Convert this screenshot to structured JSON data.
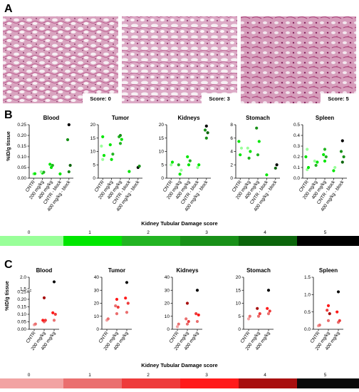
{
  "panel_a": {
    "letter": "A",
    "images": [
      {
        "score_label": "Score: 0"
      },
      {
        "score_label": "Score: 3"
      },
      {
        "score_label": "Score: 5"
      }
    ]
  },
  "panel_b": {
    "letter": "B",
    "ylabel": "%ID/g tissue",
    "scale": {
      "title": "Kidney Tubular Damage score",
      "labels": [
        "0",
        "1",
        "2",
        "3",
        "4",
        "5"
      ],
      "colors": [
        "#99ff99",
        "#00e600",
        "#22b422",
        "#189018",
        "#0b650b",
        "#000000"
      ]
    }
  },
  "panel_c": {
    "letter": "C",
    "ylabel": "%ID/g tissue",
    "scale": {
      "title": "Kidney Tubular Damage score",
      "labels": [
        "0",
        "1",
        "2",
        "3",
        "4",
        "5"
      ],
      "colors": [
        "#f2a3a3",
        "#ea6f6f",
        "#ee3b3b",
        "#ff1a1a",
        "#a80f0f",
        "#0a0a0a"
      ]
    }
  },
  "chart_data": [
    {
      "type": "scatter",
      "panel": "B",
      "title": "Blood",
      "categories": [
        "CNTR",
        "200 mg/kg",
        "400 mg/kg",
        "CNTR - block",
        "400 mg/kg - block"
      ],
      "yticks": [
        "0.00",
        "0.05",
        "0.10",
        "0.15",
        "0.20",
        "0.25"
      ],
      "ylim": [
        0,
        0.25
      ],
      "points": [
        {
          "x": "CNTR",
          "y": 0.02,
          "score": 0
        },
        {
          "x": "CNTR",
          "y": 0.021,
          "score": 1
        },
        {
          "x": "200 mg/kg",
          "y": 0.024,
          "score": 1
        },
        {
          "x": "200 mg/kg",
          "y": 0.028,
          "score": 2
        },
        {
          "x": "200 mg/kg",
          "y": 0.03,
          "score": 0
        },
        {
          "x": "400 mg/kg",
          "y": 0.05,
          "score": 1
        },
        {
          "x": "400 mg/kg",
          "y": 0.06,
          "score": 2
        },
        {
          "x": "400 mg/kg",
          "y": 0.065,
          "score": 1
        },
        {
          "x": "CNTR - block",
          "y": 0.02,
          "score": 1
        },
        {
          "x": "400 mg/kg - block",
          "y": 0.03,
          "score": 3
        },
        {
          "x": "400 mg/kg - block",
          "y": 0.06,
          "score": 4
        },
        {
          "x": "400 mg/kg - block",
          "y": 0.18,
          "score": 3
        },
        {
          "x": "400 mg/kg - block",
          "y": 0.25,
          "score": 5
        }
      ]
    },
    {
      "type": "scatter",
      "panel": "B",
      "title": "Tumor",
      "categories": [
        "CNTR",
        "200 mg/kg",
        "400 mg/kg",
        "CNTR - block",
        "400 mg/kg - block"
      ],
      "yticks": [
        "0",
        "5",
        "10",
        "15",
        "20"
      ],
      "ylim": [
        0,
        20
      ],
      "points": [
        {
          "x": "CNTR",
          "y": 7,
          "score": 0
        },
        {
          "x": "CNTR",
          "y": 8.5,
          "score": 1
        },
        {
          "x": "CNTR",
          "y": 12,
          "score": 0
        },
        {
          "x": "CNTR",
          "y": 15.5,
          "score": 1
        },
        {
          "x": "200 mg/kg",
          "y": 7,
          "score": 1
        },
        {
          "x": "200 mg/kg",
          "y": 9,
          "score": 2
        },
        {
          "x": "200 mg/kg",
          "y": 12.5,
          "score": 1
        },
        {
          "x": "400 mg/kg",
          "y": 13,
          "score": 2
        },
        {
          "x": "400 mg/kg",
          "y": 14.5,
          "score": 1
        },
        {
          "x": "400 mg/kg",
          "y": 15.5,
          "score": 2
        },
        {
          "x": "400 mg/kg",
          "y": 16,
          "score": 3
        },
        {
          "x": "CNTR - block",
          "y": 2.5,
          "score": 1
        },
        {
          "x": "400 mg/kg - block",
          "y": 4,
          "score": 5
        },
        {
          "x": "400 mg/kg - block",
          "y": 4.5,
          "score": 3
        }
      ]
    },
    {
      "type": "scatter",
      "panel": "B",
      "title": "Kidneys",
      "categories": [
        "CNTR",
        "200 mg/kg",
        "400 mg/kg",
        "CNTR - block",
        "400 mg/kg - block"
      ],
      "yticks": [
        "0",
        "5",
        "10",
        "15",
        "20"
      ],
      "ylim": [
        0,
        20
      ],
      "points": [
        {
          "x": "CNTR",
          "y": 5,
          "score": 0
        },
        {
          "x": "CNTR",
          "y": 6,
          "score": 1
        },
        {
          "x": "200 mg/kg",
          "y": 1.5,
          "score": 1
        },
        {
          "x": "200 mg/kg",
          "y": 3,
          "score": 0
        },
        {
          "x": "200 mg/kg",
          "y": 5,
          "score": 2
        },
        {
          "x": "400 mg/kg",
          "y": 5,
          "score": 1
        },
        {
          "x": "400 mg/kg",
          "y": 6.5,
          "score": 2
        },
        {
          "x": "400 mg/kg",
          "y": 8,
          "score": 1
        },
        {
          "x": "CNTR - block",
          "y": 4,
          "score": 0
        },
        {
          "x": "CNTR - block",
          "y": 5,
          "score": 1
        },
        {
          "x": "400 mg/kg - block",
          "y": 15,
          "score": 3
        },
        {
          "x": "400 mg/kg - block",
          "y": 17,
          "score": 4
        },
        {
          "x": "400 mg/kg - block",
          "y": 18,
          "score": 3
        },
        {
          "x": "400 mg/kg - block",
          "y": 19.5,
          "score": 5
        }
      ]
    },
    {
      "type": "scatter",
      "panel": "B",
      "title": "Stomach",
      "categories": [
        "CNTR",
        "200 mg/kg",
        "400 mg/kg",
        "CNTR - block",
        "400 mg/kg - block"
      ],
      "yticks": [
        "0",
        "2",
        "4",
        "6",
        "8"
      ],
      "ylim": [
        0,
        8
      ],
      "points": [
        {
          "x": "CNTR",
          "y": 3.5,
          "score": 1
        },
        {
          "x": "CNTR",
          "y": 4.5,
          "score": 0
        },
        {
          "x": "CNTR",
          "y": 5.5,
          "score": 1
        },
        {
          "x": "200 mg/kg",
          "y": 3,
          "score": 2
        },
        {
          "x": "200 mg/kg",
          "y": 4,
          "score": 1
        },
        {
          "x": "200 mg/kg",
          "y": 4.5,
          "score": 0
        },
        {
          "x": "400 mg/kg",
          "y": 3.5,
          "score": 2
        },
        {
          "x": "400 mg/kg",
          "y": 5.5,
          "score": 1
        },
        {
          "x": "400 mg/kg",
          "y": 7.5,
          "score": 3
        },
        {
          "x": "CNTR - block",
          "y": 0.5,
          "score": 1
        },
        {
          "x": "400 mg/kg - block",
          "y": 1.5,
          "score": 4
        },
        {
          "x": "400 mg/kg - block",
          "y": 2,
          "score": 5
        }
      ]
    },
    {
      "type": "scatter",
      "panel": "B",
      "title": "Spleen",
      "categories": [
        "CNTR",
        "200 mg/kg",
        "400 mg/kg",
        "CNTR - block",
        "400 mg/kg - block"
      ],
      "yticks": [
        "0.0",
        "0.1",
        "0.2",
        "0.3",
        "0.4",
        "0.5"
      ],
      "ylim": [
        0,
        0.5
      ],
      "points": [
        {
          "x": "CNTR",
          "y": 0.08,
          "score": 0
        },
        {
          "x": "CNTR",
          "y": 0.1,
          "score": 1
        },
        {
          "x": "CNTR",
          "y": 0.2,
          "score": 1
        },
        {
          "x": "CNTR",
          "y": 0.27,
          "score": 0
        },
        {
          "x": "200 mg/kg",
          "y": 0.12,
          "score": 2
        },
        {
          "x": "200 mg/kg",
          "y": 0.15,
          "score": 1
        },
        {
          "x": "200 mg/kg",
          "y": 0.16,
          "score": 0
        },
        {
          "x": "400 mg/kg",
          "y": 0.16,
          "score": 1
        },
        {
          "x": "400 mg/kg",
          "y": 0.2,
          "score": 2
        },
        {
          "x": "400 mg/kg",
          "y": 0.22,
          "score": 1
        },
        {
          "x": "400 mg/kg",
          "y": 0.27,
          "score": 2
        },
        {
          "x": "CNTR - block",
          "y": 0.07,
          "score": 1
        },
        {
          "x": "CNTR - block",
          "y": 0.1,
          "score": 0
        },
        {
          "x": "400 mg/kg - block",
          "y": 0.15,
          "score": 4
        },
        {
          "x": "400 mg/kg - block",
          "y": 0.2,
          "score": 3
        },
        {
          "x": "400 mg/kg - block",
          "y": 0.25,
          "score": 3
        },
        {
          "x": "400 mg/kg - block",
          "y": 0.35,
          "score": 5
        }
      ]
    },
    {
      "type": "scatter",
      "panel": "C",
      "title": "Blood",
      "categories": [
        "CNTR",
        "200 mg/kg",
        "400 mg/kg"
      ],
      "yticks": [
        "0.00",
        "0.05",
        "0.10",
        "0.15",
        "0.20",
        "0.25",
        "1.5",
        "2.0"
      ],
      "ylim": [
        0,
        2.0
      ],
      "axis_break": [
        0.25,
        1.5
      ],
      "points": [
        {
          "x": "CNTR",
          "y": 0.03,
          "score": 0
        },
        {
          "x": "CNTR",
          "y": 0.035,
          "score": 1
        },
        {
          "x": "200 mg/kg",
          "y": 0.05,
          "score": 1
        },
        {
          "x": "200 mg/kg",
          "y": 0.06,
          "score": 2
        },
        {
          "x": "200 mg/kg",
          "y": 0.06,
          "score": 3
        },
        {
          "x": "200 mg/kg",
          "y": 0.21,
          "score": 4
        },
        {
          "x": "400 mg/kg",
          "y": 0.06,
          "score": 1
        },
        {
          "x": "400 mg/kg",
          "y": 0.1,
          "score": 2
        },
        {
          "x": "400 mg/kg",
          "y": 0.11,
          "score": 3
        },
        {
          "x": "400 mg/kg",
          "y": 1.8,
          "score": 5
        }
      ]
    },
    {
      "type": "scatter",
      "panel": "C",
      "title": "Tumor",
      "categories": [
        "CNTR",
        "200 mg/kg",
        "400 mg/kg"
      ],
      "yticks": [
        "0",
        "10",
        "20",
        "30",
        "40"
      ],
      "ylim": [
        0,
        40
      ],
      "points": [
        {
          "x": "CNTR",
          "y": 7,
          "score": 0
        },
        {
          "x": "CNTR",
          "y": 8,
          "score": 1
        },
        {
          "x": "200 mg/kg",
          "y": 12,
          "score": 1
        },
        {
          "x": "200 mg/kg",
          "y": 17,
          "score": 2
        },
        {
          "x": "200 mg/kg",
          "y": 18,
          "score": 1
        },
        {
          "x": "200 mg/kg",
          "y": 23,
          "score": 3
        },
        {
          "x": "400 mg/kg",
          "y": 13,
          "score": 1
        },
        {
          "x": "400 mg/kg",
          "y": 20,
          "score": 2
        },
        {
          "x": "400 mg/kg",
          "y": 24,
          "score": 3
        },
        {
          "x": "400 mg/kg",
          "y": 36,
          "score": 5
        }
      ]
    },
    {
      "type": "scatter",
      "panel": "C",
      "title": "Kidneys",
      "categories": [
        "CNTR",
        "200 mg/kg",
        "400 mg/kg"
      ],
      "yticks": [
        "0",
        "10",
        "20",
        "30",
        "40"
      ],
      "ylim": [
        0,
        40
      ],
      "points": [
        {
          "x": "CNTR",
          "y": 2,
          "score": 0
        },
        {
          "x": "CNTR",
          "y": 4,
          "score": 1
        },
        {
          "x": "200 mg/kg",
          "y": 4,
          "score": 1
        },
        {
          "x": "200 mg/kg",
          "y": 6,
          "score": 2
        },
        {
          "x": "200 mg/kg",
          "y": 8,
          "score": 1
        },
        {
          "x": "200 mg/kg",
          "y": 20,
          "score": 4
        },
        {
          "x": "400 mg/kg",
          "y": 6,
          "score": 1
        },
        {
          "x": "400 mg/kg",
          "y": 11,
          "score": 3
        },
        {
          "x": "400 mg/kg",
          "y": 12,
          "score": 2
        },
        {
          "x": "400 mg/kg",
          "y": 30,
          "score": 5
        }
      ]
    },
    {
      "type": "scatter",
      "panel": "C",
      "title": "Stomach",
      "categories": [
        "CNTR",
        "200 mg/kg",
        "400 mg/kg"
      ],
      "yticks": [
        "0",
        "5",
        "10",
        "15",
        "20"
      ],
      "ylim": [
        0,
        20
      ],
      "points": [
        {
          "x": "CNTR",
          "y": 4,
          "score": 0
        },
        {
          "x": "CNTR",
          "y": 5,
          "score": 1
        },
        {
          "x": "200 mg/kg",
          "y": 5,
          "score": 1
        },
        {
          "x": "200 mg/kg",
          "y": 6,
          "score": 2
        },
        {
          "x": "200 mg/kg",
          "y": 8,
          "score": 4
        },
        {
          "x": "400 mg/kg",
          "y": 6,
          "score": 1
        },
        {
          "x": "400 mg/kg",
          "y": 7,
          "score": 2
        },
        {
          "x": "400 mg/kg",
          "y": 8,
          "score": 3
        },
        {
          "x": "400 mg/kg",
          "y": 15,
          "score": 5
        }
      ]
    },
    {
      "type": "scatter",
      "panel": "C",
      "title": "Spleen",
      "categories": [
        "CNTR",
        "200 mg/kg",
        "400 mg/kg"
      ],
      "yticks": [
        "0.0",
        "0.5",
        "1.0",
        "1.5"
      ],
      "ylim": [
        0,
        1.5
      ],
      "points": [
        {
          "x": "CNTR",
          "y": 0.1,
          "score": 0
        },
        {
          "x": "CNTR",
          "y": 0.12,
          "score": 1
        },
        {
          "x": "200 mg/kg",
          "y": 0.25,
          "score": 1
        },
        {
          "x": "200 mg/kg",
          "y": 0.45,
          "score": 4
        },
        {
          "x": "200 mg/kg",
          "y": 0.55,
          "score": 2
        },
        {
          "x": "200 mg/kg",
          "y": 0.68,
          "score": 3
        },
        {
          "x": "400 mg/kg",
          "y": 0.2,
          "score": 1
        },
        {
          "x": "400 mg/kg",
          "y": 0.25,
          "score": 2
        },
        {
          "x": "400 mg/kg",
          "y": 0.5,
          "score": 3
        },
        {
          "x": "400 mg/kg",
          "y": 1.08,
          "score": 5
        }
      ]
    }
  ]
}
